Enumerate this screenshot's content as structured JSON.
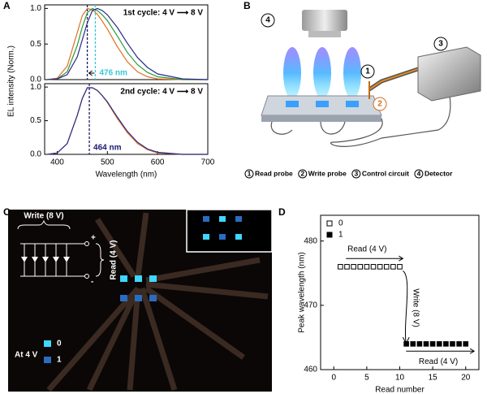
{
  "panels": {
    "a": "A",
    "b": "B",
    "c": "C",
    "d": "D"
  },
  "chart_data": [
    {
      "type": "line",
      "title": "1st cycle: 4 V ⟶ 8 V",
      "ylabel": "EL intensity (Norm.)",
      "x": [
        380,
        400,
        420,
        440,
        450,
        460,
        470,
        480,
        490,
        500,
        520,
        540,
        560,
        580,
        600,
        650,
        700
      ],
      "xlim": [
        375,
        700
      ],
      "ylim": [
        0,
        1.05
      ],
      "yticks": [
        {
          "value": 0,
          "label": "0.0"
        },
        {
          "value": 0.5,
          "label": "0.5"
        },
        {
          "value": 1,
          "label": "1.0"
        }
      ],
      "series": [
        {
          "color": "#e07020",
          "values": [
            0,
            0.02,
            0.19,
            0.66,
            0.9,
            1,
            0.98,
            0.92,
            0.82,
            0.71,
            0.46,
            0.25,
            0.11,
            0.04,
            0.01,
            0,
            0
          ]
        },
        {
          "color": "#2a9a3a",
          "values": [
            0,
            0.01,
            0.11,
            0.48,
            0.74,
            0.94,
            1,
            0.97,
            0.91,
            0.83,
            0.61,
            0.38,
            0.21,
            0.1,
            0.04,
            0,
            0
          ]
        },
        {
          "color": "#2a2a8a",
          "values": [
            0,
            0.01,
            0.07,
            0.32,
            0.56,
            0.8,
            0.97,
            1,
            0.97,
            0.91,
            0.73,
            0.51,
            0.31,
            0.17,
            0.08,
            0.01,
            0
          ]
        }
      ],
      "vlines": [
        {
          "x": 460,
          "color": "#1a1a6e"
        },
        {
          "x": 476,
          "color": "#35c8d8",
          "label": "476 nm"
        }
      ]
    },
    {
      "type": "line",
      "title": "2nd cycle: 4 V ⟶ 8 V",
      "xlabel": "Wavelength (nm)",
      "x": [
        380,
        400,
        420,
        440,
        450,
        460,
        470,
        480,
        490,
        500,
        520,
        540,
        560,
        580,
        600,
        650,
        700
      ],
      "xlim": [
        375,
        700
      ],
      "ylim": [
        0,
        1.05
      ],
      "xticks": [
        400,
        500,
        600,
        700
      ],
      "yticks": [
        {
          "value": 0,
          "label": "0.0"
        },
        {
          "value": 0.5,
          "label": "0.5"
        },
        {
          "value": 1,
          "label": "1.0"
        }
      ],
      "series": [
        {
          "color": "#e07020",
          "values": [
            0,
            0.02,
            0.16,
            0.58,
            0.83,
            0.99,
            0.99,
            0.95,
            0.87,
            0.77,
            0.53,
            0.32,
            0.16,
            0.07,
            0.02,
            0,
            0
          ]
        },
        {
          "color": "#2a2a8a",
          "values": [
            0,
            0.02,
            0.16,
            0.58,
            0.83,
            0.99,
            0.99,
            0.95,
            0.87,
            0.78,
            0.55,
            0.34,
            0.18,
            0.08,
            0.03,
            0,
            0
          ]
        }
      ],
      "vlines": [
        {
          "x": 464,
          "color": "#1a1a6e",
          "label": "464 nm"
        }
      ]
    },
    {
      "type": "scatter",
      "xlabel": "Read number",
      "ylabel": "Peak wavelength (nm)",
      "xlim": [
        -2,
        22
      ],
      "ylim": [
        460,
        484
      ],
      "xticks": [
        0,
        5,
        10,
        15,
        20
      ],
      "yticks": [
        460,
        470,
        480
      ],
      "legend": "upper left",
      "series": [
        {
          "name": "0",
          "color": "#000000",
          "marker": "open",
          "x": [
            1,
            2,
            3,
            4,
            5,
            6,
            7,
            8,
            9,
            10
          ],
          "values": [
            476,
            476,
            476,
            476,
            476,
            476,
            476,
            476,
            476,
            476
          ]
        },
        {
          "name": "1",
          "color": "#000000",
          "marker": "filled",
          "x": [
            11,
            12,
            13,
            14,
            15,
            16,
            17,
            18,
            19,
            20
          ],
          "values": [
            464,
            464,
            464,
            464,
            464,
            464,
            464,
            464,
            464,
            464
          ]
        }
      ],
      "annotations": [
        "Read (4 V)",
        "Write (8 V)",
        "Read (4 V)"
      ]
    }
  ],
  "diagram": {
    "items": [
      {
        "number": "1",
        "label": "Read probe"
      },
      {
        "number": "2",
        "label": "Write probe"
      },
      {
        "number": "3",
        "label": "Control circuit"
      },
      {
        "number": "4",
        "label": "Detector"
      }
    ]
  },
  "photo": {
    "write": "Write (8 V)",
    "read": "Read (4 V)",
    "plus": "+",
    "minus": "-",
    "legend_title": "At 4 V",
    "legend": [
      "0",
      "1"
    ]
  }
}
